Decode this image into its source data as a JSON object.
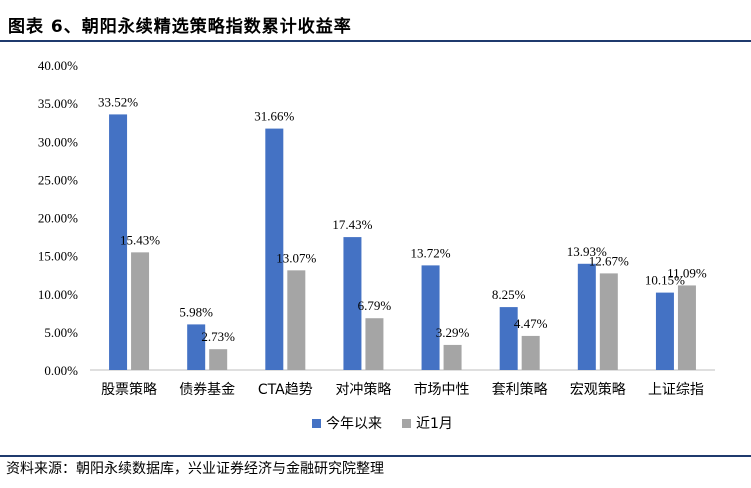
{
  "header": {
    "title": "图表 6、朝阳永续精选策略指数累计收益率"
  },
  "footer": {
    "source": "资料来源：朝阳永续数据库，兴业证券经济与金融研究院整理"
  },
  "chart_data": {
    "type": "bar",
    "title": "",
    "categories": [
      "股票策略",
      "债券基金",
      "CTA趋势",
      "对冲策略",
      "市场中性",
      "套利策略",
      "宏观策略",
      "上证综指"
    ],
    "series": [
      {
        "name": "今年以来",
        "values": [
          33.52,
          5.98,
          31.66,
          17.43,
          13.72,
          8.25,
          13.93,
          10.15
        ],
        "labels": [
          "33.52%",
          "5.98%",
          "31.66%",
          "17.43%",
          "13.72%",
          "8.25%",
          "13.93%",
          "10.15%"
        ],
        "color": "#4472c4"
      },
      {
        "name": "近1月",
        "values": [
          15.43,
          2.73,
          13.07,
          6.79,
          3.29,
          4.47,
          12.67,
          11.09
        ],
        "labels": [
          "15.43%",
          "2.73%",
          "13.07%",
          "6.79%",
          "3.29%",
          "4.47%",
          "12.67%",
          "11.09%"
        ],
        "color": "#a5a5a5"
      }
    ],
    "yticks": [
      "0.00%",
      "5.00%",
      "10.00%",
      "15.00%",
      "20.00%",
      "25.00%",
      "30.00%",
      "35.00%",
      "40.00%"
    ],
    "ylim": [
      0,
      40
    ],
    "grid": false,
    "legend_position": "bottom"
  }
}
